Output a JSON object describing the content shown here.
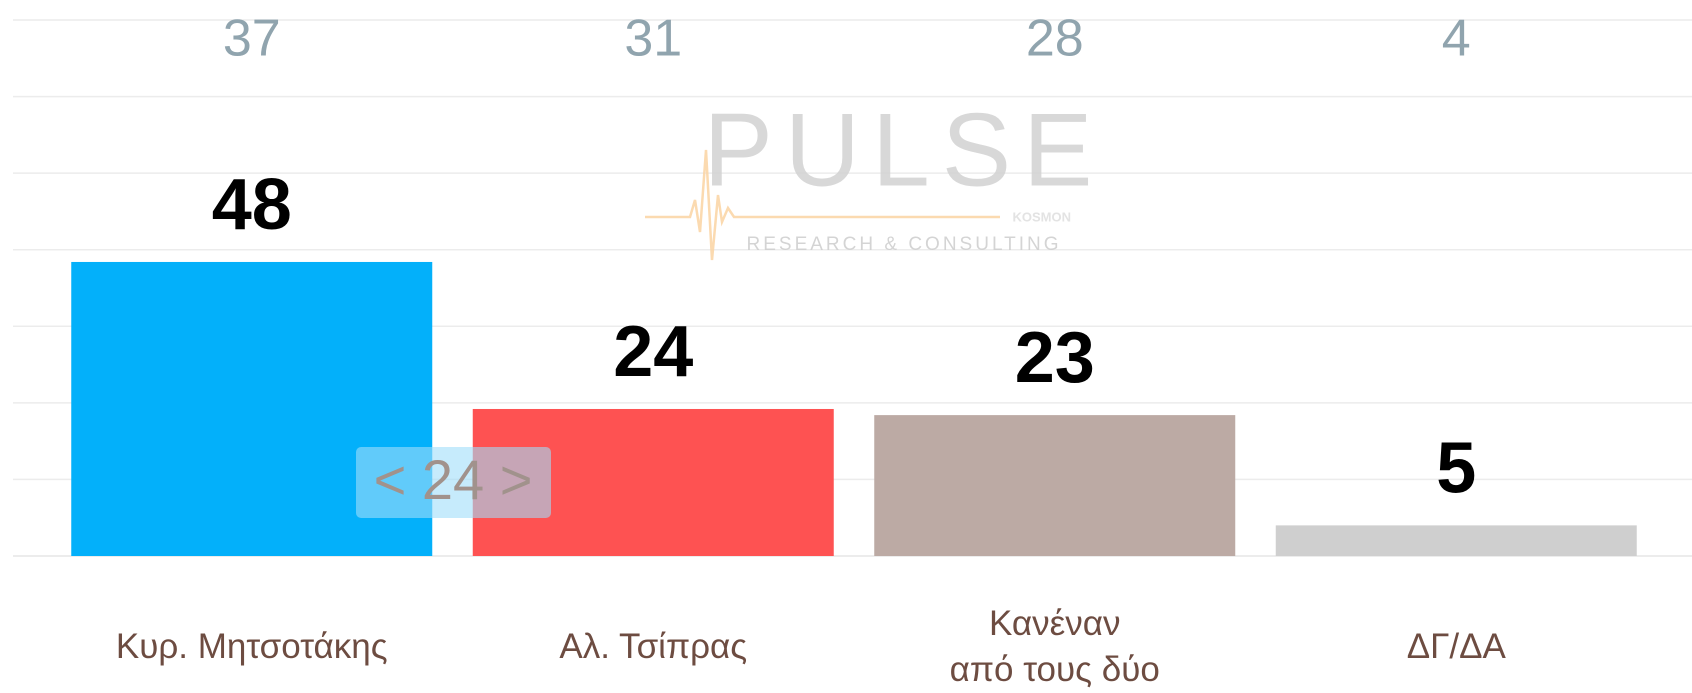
{
  "chart_data": {
    "type": "bar",
    "categories": [
      "Κυρ. Μητσοτάκης",
      "Αλ. Τσίπρας",
      "Κανέναν\nαπό τους δύο",
      "ΔΓ/ΔΑ"
    ],
    "values": [
      48,
      24,
      23,
      5
    ],
    "colors": [
      "#03b0fa",
      "#fe5252",
      "#bcaaa4",
      "#cfcfcf"
    ],
    "comparison_values": [
      37,
      31,
      28,
      4
    ],
    "ylim": [
      0,
      87.5
    ],
    "yticks": [
      0,
      12.5,
      25,
      37.5,
      50,
      62.5,
      75,
      87.5
    ],
    "grid": true,
    "annotation": "< 24 >"
  },
  "watermark": {
    "title": "PULSE",
    "subtitle": "RESEARCH & CONSULTING",
    "tag": "KOSMON"
  }
}
